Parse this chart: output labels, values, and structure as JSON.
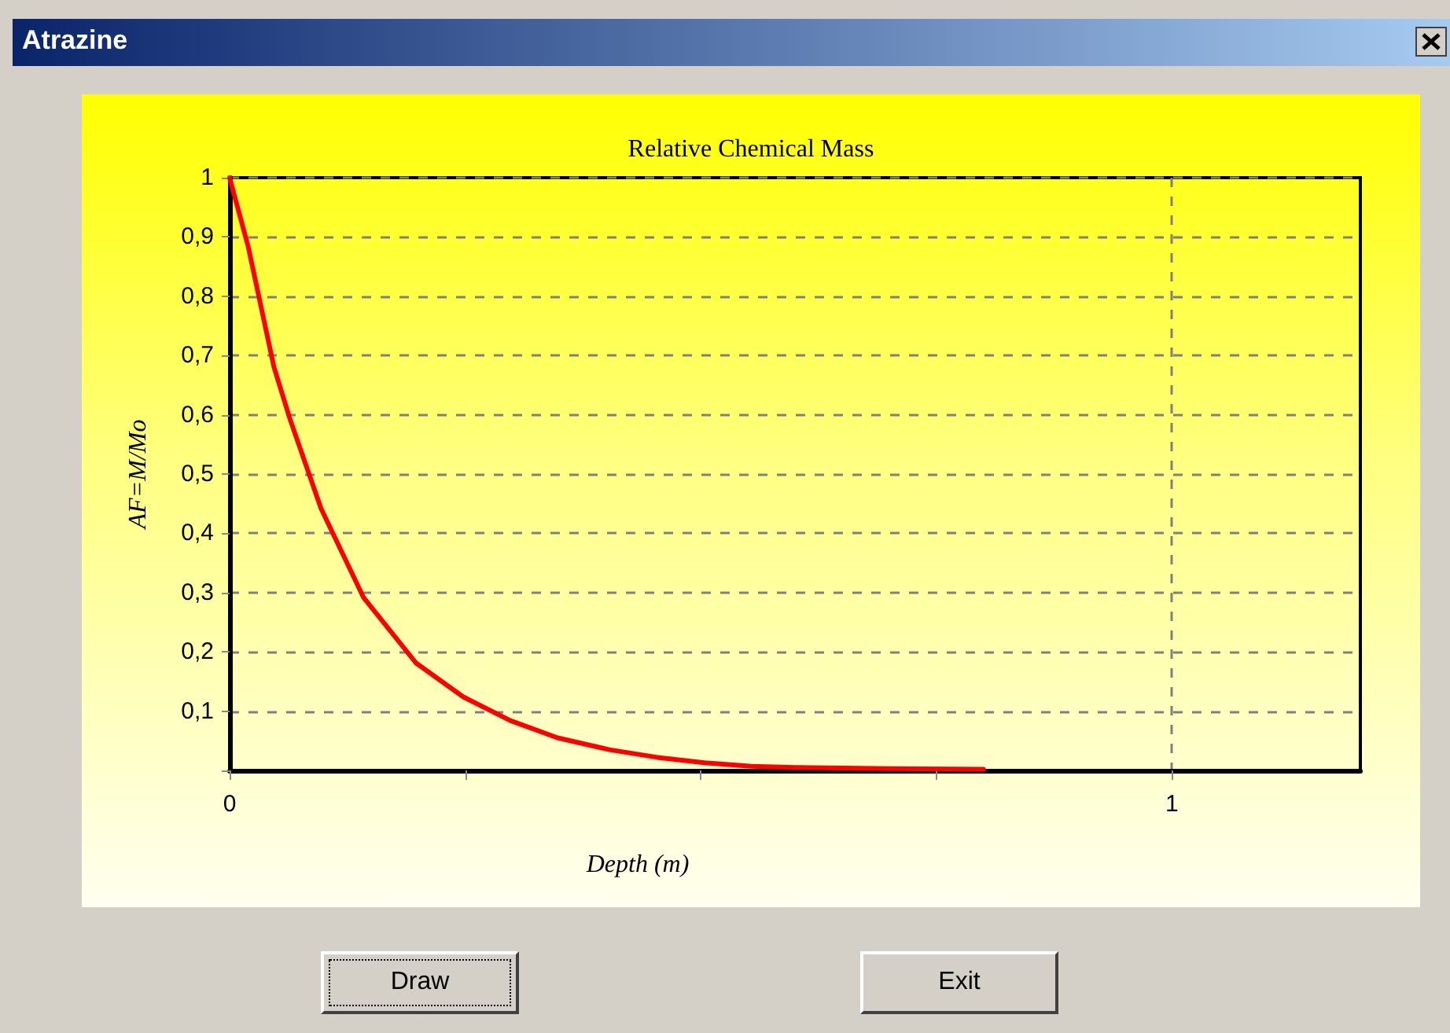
{
  "chart_data": {
    "type": "line",
    "title": "Relative Chemical Mass",
    "xlabel": "Depth (m)",
    "ylabel": "AF=M/Mo",
    "annotations": [
      "Atrazine",
      "Draw",
      "Exit"
    ],
    "x": [
      0,
      0.0195,
      0.047,
      0.064,
      0.097,
      0.142,
      0.198,
      0.248,
      0.298,
      0.348,
      0.403,
      0.454,
      0.504,
      0.554,
      0.6,
      0.7,
      0.8
    ],
    "series": [
      {
        "color": "#ff0000",
        "values": [
          1,
          0.885,
          0.681,
          0.593,
          0.442,
          0.292,
          0.181,
          0.124,
          0.084,
          0.055,
          0.035,
          0.022,
          0.013,
          0.007,
          0.005,
          0.003,
          0.002
        ]
      }
    ],
    "xlim": [
      0,
      1.2
    ],
    "xticks": [
      0,
      {
        "value": 0.25,
        "label": null
      },
      {
        "value": 0.5,
        "label": null
      },
      {
        "value": 0.75,
        "label": null
      },
      1
    ],
    "ylim": [
      0,
      1
    ],
    "yticks": [
      {
        "value": 0,
        "label": null
      },
      {
        "value": 0.1,
        "label": "0,1"
      },
      {
        "value": 0.2,
        "label": "0,2"
      },
      {
        "value": 0.3,
        "label": "0,3"
      },
      {
        "value": 0.4,
        "label": "0,4"
      },
      {
        "value": 0.5,
        "label": "0,5"
      },
      {
        "value": 0.6,
        "label": "0,6"
      },
      {
        "value": 0.7,
        "label": "0,7"
      },
      {
        "value": 0.8,
        "label": "0,8"
      },
      {
        "value": 0.9,
        "label": "0,9"
      },
      1
    ],
    "grid": true,
    "marker": "none",
    "line_style": "solid"
  }
}
